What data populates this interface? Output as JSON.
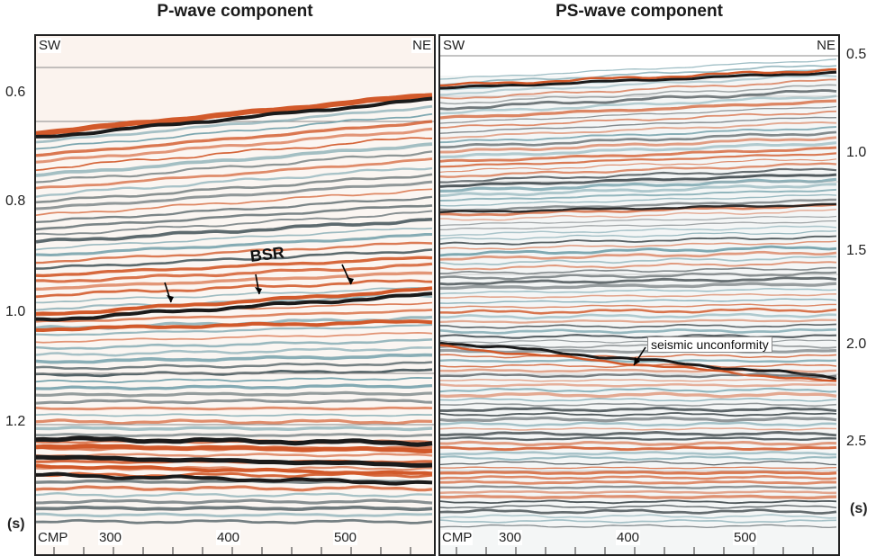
{
  "titles": {
    "p": "P-wave component",
    "ps": "PS-wave component"
  },
  "directions": {
    "left": "SW",
    "right": "NE"
  },
  "left_axis": {
    "ticks": [
      "0.6",
      "0.8",
      "1.0",
      "1.2"
    ],
    "unit": "(s)"
  },
  "right_axis": {
    "ticks": [
      "0.5",
      "1.0",
      "1.5",
      "2.0",
      "2.5"
    ],
    "unit": "(s)"
  },
  "cmp_axis": {
    "label": "CMP",
    "ticks": [
      "300",
      "400",
      "500"
    ]
  },
  "annotations": {
    "bsr": "BSR",
    "unconformity": "seismic unconformity"
  },
  "colors": {
    "orange": "#d2592a",
    "dark": "#1b1b1b",
    "teal": "#6f9ea8",
    "frame": "#222222"
  }
}
